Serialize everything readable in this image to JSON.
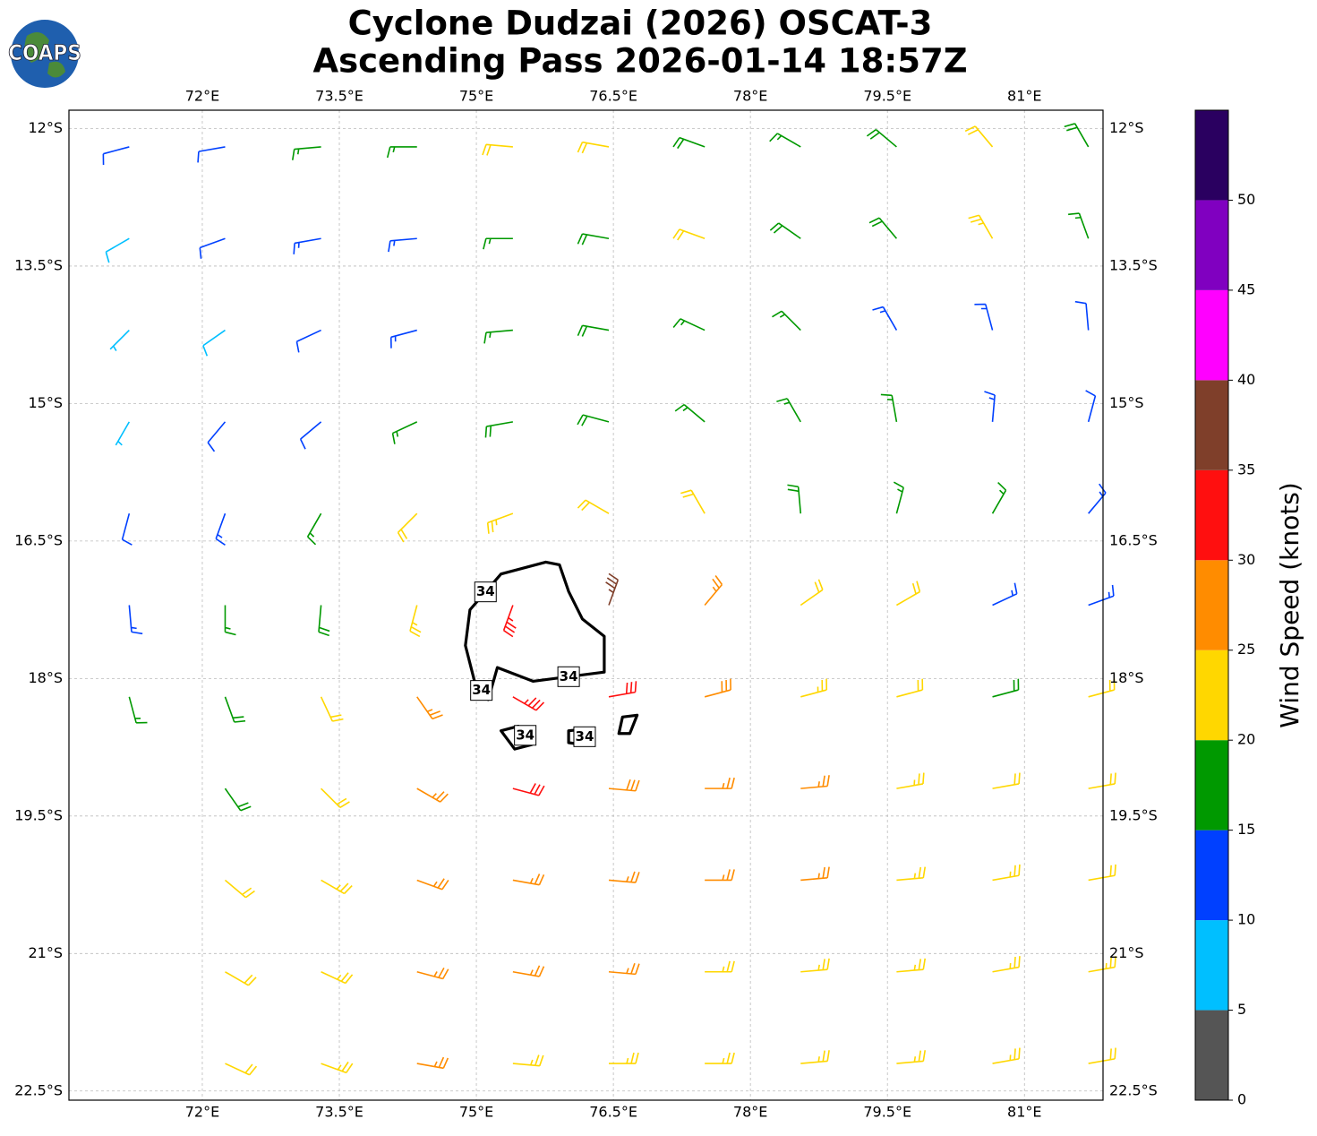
{
  "chart_data": {
    "type": "barbs",
    "title": "Cyclone Dudzai (2026) OSCAT-3",
    "subtitle": "Ascending Pass 2026-01-14 18:57Z",
    "logo": "COAPS",
    "xlim": [
      70.54,
      81.86
    ],
    "ylim": [
      -22.6,
      -11.8
    ],
    "xticks": [
      {
        "value": 72,
        "label": "72°E"
      },
      {
        "value": 73.5,
        "label": "73.5°E"
      },
      {
        "value": 75,
        "label": "75°E"
      },
      {
        "value": 76.5,
        "label": "76.5°E"
      },
      {
        "value": 78,
        "label": "78°E"
      },
      {
        "value": 79.5,
        "label": "79.5°E"
      },
      {
        "value": 81,
        "label": "81°E"
      }
    ],
    "yticks": [
      {
        "value": -12,
        "label": "12°S"
      },
      {
        "value": -13.5,
        "label": "13.5°S"
      },
      {
        "value": -15,
        "label": "15°S"
      },
      {
        "value": -16.5,
        "label": "16.5°S"
      },
      {
        "value": -18,
        "label": "18°S"
      },
      {
        "value": -19.5,
        "label": "19.5°S"
      },
      {
        "value": -21,
        "label": "21°S"
      },
      {
        "value": -22.5,
        "label": "22.5°S"
      }
    ],
    "grid": true,
    "colorbar": {
      "label": "Wind Speed (knots)",
      "lim": [
        0,
        55
      ],
      "bounds": [
        0,
        5,
        10,
        15,
        20,
        25,
        30,
        35,
        40,
        45,
        50,
        55
      ],
      "colors": [
        "#555555",
        "#00bfff",
        "#0040ff",
        "#009900",
        "#ffd700",
        "#ff8c00",
        "#ff0f0f",
        "#7f3f2a",
        "#ff00ff",
        "#8000c0",
        "#2a0060"
      ],
      "ticks": [
        0,
        5,
        10,
        15,
        20,
        25,
        30,
        35,
        40,
        45,
        50
      ]
    },
    "barbs": {
      "lon": [
        71.2,
        72.25,
        73.3,
        74.35,
        75.4,
        76.45,
        77.5,
        78.55,
        79.6,
        80.65,
        81.7
      ],
      "lat": [
        -12.2,
        -13.2,
        -14.2,
        -15.2,
        -16.2,
        -17.2,
        -18.2,
        -19.2,
        -20.2,
        -21.2,
        -22.2
      ],
      "speed": [
        [
          12,
          12,
          16,
          17,
          21,
          22,
          18,
          17,
          19,
          22,
          18
        ],
        [
          8,
          11,
          13,
          13,
          16,
          18,
          20,
          18,
          19,
          24,
          17
        ],
        [
          7,
          9,
          12,
          13,
          16,
          18,
          17,
          16,
          14,
          13,
          12
        ],
        [
          7,
          11,
          12,
          16,
          18,
          19,
          17,
          17,
          15,
          13,
          12
        ],
        [
          11,
          14,
          17,
          20,
          23,
          22,
          20,
          18,
          16,
          15,
          13
        ],
        [
          13,
          16,
          19,
          24,
          33,
          37,
          27,
          22,
          20,
          14,
          14
        ],
        [
          16,
          18,
          22,
          27,
          33,
          32,
          28,
          24,
          21,
          19,
          22
        ],
        [
          null,
          18,
          22,
          26,
          30,
          29,
          26,
          25,
          23,
          22,
          21
        ],
        [
          null,
          22,
          24,
          27,
          27,
          26,
          26,
          25,
          24,
          23,
          22
        ],
        [
          null,
          22,
          24,
          26,
          26,
          25,
          24,
          24,
          24,
          24,
          23
        ],
        [
          null,
          22,
          23,
          25,
          24,
          24,
          23,
          23,
          23,
          23,
          22
        ]
      ],
      "direction": [
        [
          255,
          260,
          265,
          270,
          275,
          280,
          290,
          300,
          310,
          320,
          330
        ],
        [
          240,
          250,
          260,
          265,
          270,
          280,
          290,
          305,
          320,
          330,
          340
        ],
        [
          225,
          235,
          245,
          255,
          265,
          280,
          295,
          315,
          330,
          345,
          355
        ],
        [
          210,
          220,
          230,
          245,
          260,
          285,
          310,
          330,
          350,
          5,
          15
        ],
        [
          195,
          200,
          210,
          225,
          250,
          300,
          330,
          355,
          15,
          30,
          40
        ],
        [
          175,
          180,
          185,
          195,
          200,
          20,
          40,
          55,
          60,
          65,
          70
        ],
        [
          165,
          160,
          155,
          145,
          120,
          80,
          75,
          75,
          75,
          75,
          75
        ],
        [
          null,
          145,
          135,
          120,
          105,
          95,
          90,
          85,
          80,
          80,
          80
        ],
        [
          null,
          130,
          120,
          110,
          100,
          95,
          90,
          85,
          85,
          80,
          80
        ],
        [
          null,
          120,
          115,
          105,
          100,
          95,
          90,
          85,
          85,
          80,
          80
        ],
        [
          null,
          115,
          110,
          100,
          95,
          90,
          90,
          85,
          85,
          80,
          80
        ]
      ]
    },
    "contour": {
      "level": 34,
      "paths": [
        {
          "lon": [
            75.76,
            75.27,
            74.93,
            74.88,
            74.98,
            75.13,
            75.23,
            75.62,
            76.4,
            76.4,
            76.16,
            76.01,
            75.91
          ],
          "lat": [
            -16.73,
            -16.86,
            -17.25,
            -17.64,
            -18.03,
            -18.23,
            -17.88,
            -18.03,
            -17.93,
            -17.54,
            -17.35,
            -17.05,
            -16.76
          ]
        },
        {
          "lon": [
            75.27,
            75.46,
            75.61,
            75.42
          ],
          "lat": [
            -18.57,
            -18.52,
            -18.72,
            -18.77
          ]
        },
        {
          "lon": [
            76.01,
            76.21,
            76.16,
            76.01
          ],
          "lat": [
            -18.57,
            -18.55,
            -18.72,
            -18.7
          ]
        },
        {
          "lon": [
            76.6,
            76.76,
            76.68,
            76.56
          ],
          "lat": [
            -18.42,
            -18.4,
            -18.6,
            -18.6
          ]
        }
      ]
    }
  }
}
